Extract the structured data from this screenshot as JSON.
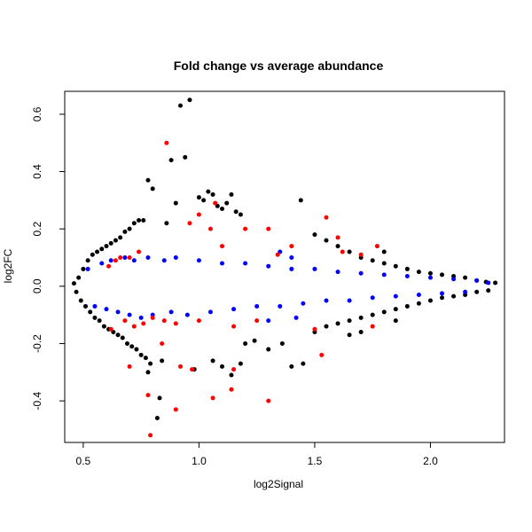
{
  "chart_data": {
    "type": "scatter",
    "title": "Fold change vs average abundance",
    "xlabel": "log2Signal",
    "ylabel": "log2FC",
    "xlim": [
      0.42,
      2.32
    ],
    "ylim": [
      -0.545,
      0.68
    ],
    "x_ticks": [
      0.5,
      1.0,
      1.5,
      2.0
    ],
    "x_tick_labels": [
      "0.5",
      "1.0",
      "1.5",
      "2.0"
    ],
    "y_ticks": [
      -0.4,
      -0.2,
      0.0,
      0.2,
      0.4,
      0.6
    ],
    "y_tick_labels": [
      "-0.4",
      "-0.2",
      "0.0",
      "0.2",
      "0.4",
      "0.6"
    ],
    "grid": false,
    "colors": {
      "black": "#000000",
      "blue": "#0000ff",
      "red": "#ff0000"
    },
    "series": [
      {
        "color": "#000000",
        "note_density": "dense cloud",
        "points": [
          [
            0.46,
            0.01
          ],
          [
            0.47,
            -0.02
          ],
          [
            0.48,
            0.03
          ],
          [
            0.49,
            -0.05
          ],
          [
            0.5,
            0.06
          ],
          [
            0.51,
            -0.07
          ],
          [
            0.52,
            0.09
          ],
          [
            0.53,
            -0.09
          ],
          [
            0.54,
            0.11
          ],
          [
            0.55,
            -0.11
          ],
          [
            0.56,
            0.12
          ],
          [
            0.57,
            -0.12
          ],
          [
            0.58,
            0.13
          ],
          [
            0.59,
            -0.14
          ],
          [
            0.6,
            0.14
          ],
          [
            0.61,
            -0.15
          ],
          [
            0.62,
            0.15
          ],
          [
            0.63,
            -0.16
          ],
          [
            0.64,
            0.16
          ],
          [
            0.65,
            -0.17
          ],
          [
            0.66,
            0.17
          ],
          [
            0.67,
            -0.18
          ],
          [
            0.68,
            0.19
          ],
          [
            0.69,
            -0.2
          ],
          [
            0.7,
            0.2
          ],
          [
            0.71,
            -0.21
          ],
          [
            0.72,
            0.22
          ],
          [
            0.73,
            -0.22
          ],
          [
            0.74,
            0.23
          ],
          [
            0.75,
            -0.24
          ],
          [
            0.76,
            0.23
          ],
          [
            0.77,
            -0.25
          ],
          [
            0.78,
            0.37
          ],
          [
            0.8,
            0.34
          ],
          [
            0.78,
            -0.3
          ],
          [
            0.79,
            -0.27
          ],
          [
            0.82,
            -0.46
          ],
          [
            0.83,
            -0.39
          ],
          [
            0.84,
            -0.26
          ],
          [
            0.86,
            0.22
          ],
          [
            0.88,
            0.44
          ],
          [
            0.9,
            0.29
          ],
          [
            0.92,
            0.63
          ],
          [
            0.94,
            0.45
          ],
          [
            0.96,
            0.65
          ],
          [
            0.98,
            -0.29
          ],
          [
            1.0,
            0.31
          ],
          [
            1.02,
            0.3
          ],
          [
            1.04,
            0.33
          ],
          [
            1.06,
            0.32
          ],
          [
            1.08,
            0.28
          ],
          [
            1.1,
            0.27
          ],
          [
            1.12,
            0.29
          ],
          [
            1.14,
            0.32
          ],
          [
            1.16,
            0.26
          ],
          [
            1.18,
            0.25
          ],
          [
            1.06,
            -0.26
          ],
          [
            1.1,
            -0.28
          ],
          [
            1.14,
            -0.31
          ],
          [
            1.18,
            -0.27
          ],
          [
            1.2,
            -0.2
          ],
          [
            1.24,
            -0.19
          ],
          [
            1.3,
            -0.22
          ],
          [
            1.36,
            -0.2
          ],
          [
            1.4,
            -0.28
          ],
          [
            1.45,
            -0.27
          ],
          [
            1.44,
            0.3
          ],
          [
            1.5,
            0.18
          ],
          [
            1.55,
            0.16
          ],
          [
            1.6,
            0.14
          ],
          [
            1.65,
            0.12
          ],
          [
            1.7,
            0.1
          ],
          [
            1.75,
            0.09
          ],
          [
            1.8,
            0.08
          ],
          [
            1.85,
            0.07
          ],
          [
            1.9,
            0.06
          ],
          [
            1.95,
            0.05
          ],
          [
            2.0,
            0.045
          ],
          [
            2.05,
            0.04
          ],
          [
            2.1,
            0.035
          ],
          [
            2.15,
            0.03
          ],
          [
            2.2,
            0.02
          ],
          [
            2.24,
            0.015
          ],
          [
            2.28,
            0.012
          ],
          [
            1.5,
            -0.16
          ],
          [
            1.55,
            -0.14
          ],
          [
            1.6,
            -0.13
          ],
          [
            1.65,
            -0.12
          ],
          [
            1.7,
            -0.11
          ],
          [
            1.75,
            -0.1
          ],
          [
            1.8,
            -0.09
          ],
          [
            1.85,
            -0.08
          ],
          [
            1.9,
            -0.07
          ],
          [
            1.95,
            -0.06
          ],
          [
            2.0,
            -0.05
          ],
          [
            2.05,
            -0.04
          ],
          [
            2.1,
            -0.035
          ],
          [
            2.15,
            -0.03
          ],
          [
            2.2,
            -0.02
          ],
          [
            2.25,
            -0.015
          ],
          [
            1.7,
            -0.16
          ],
          [
            1.65,
            -0.17
          ],
          [
            1.8,
            0.12
          ],
          [
            1.85,
            -0.12
          ]
        ]
      },
      {
        "color": "#0000ff",
        "points": [
          [
            0.52,
            0.06
          ],
          [
            0.55,
            -0.07
          ],
          [
            0.58,
            0.08
          ],
          [
            0.6,
            -0.08
          ],
          [
            0.62,
            0.09
          ],
          [
            0.65,
            -0.09
          ],
          [
            0.68,
            0.1
          ],
          [
            0.7,
            -0.1
          ],
          [
            0.72,
            0.09
          ],
          [
            0.75,
            -0.11
          ],
          [
            0.78,
            0.1
          ],
          [
            0.8,
            -0.1
          ],
          [
            0.85,
            0.09
          ],
          [
            0.88,
            -0.09
          ],
          [
            0.9,
            0.1
          ],
          [
            0.95,
            -0.1
          ],
          [
            1.0,
            0.09
          ],
          [
            1.05,
            -0.09
          ],
          [
            1.1,
            0.08
          ],
          [
            1.15,
            -0.08
          ],
          [
            1.2,
            0.08
          ],
          [
            1.25,
            -0.07
          ],
          [
            1.3,
            0.07
          ],
          [
            1.35,
            -0.07
          ],
          [
            1.4,
            0.06
          ],
          [
            1.45,
            -0.06
          ],
          [
            1.5,
            0.06
          ],
          [
            1.55,
            -0.05
          ],
          [
            1.6,
            0.05
          ],
          [
            1.65,
            -0.05
          ],
          [
            1.7,
            0.045
          ],
          [
            1.75,
            -0.04
          ],
          [
            1.8,
            0.04
          ],
          [
            1.85,
            -0.035
          ],
          [
            1.9,
            0.035
          ],
          [
            1.95,
            -0.03
          ],
          [
            2.0,
            0.03
          ],
          [
            2.05,
            -0.025
          ],
          [
            2.1,
            0.025
          ],
          [
            2.15,
            -0.02
          ],
          [
            2.2,
            0.02
          ],
          [
            2.25,
            0.012
          ],
          [
            1.4,
            0.1
          ],
          [
            1.42,
            -0.11
          ],
          [
            1.35,
            0.12
          ],
          [
            1.3,
            -0.12
          ]
        ]
      },
      {
        "color": "#ff0000",
        "points": [
          [
            0.61,
            0.07
          ],
          [
            0.64,
            0.09
          ],
          [
            0.66,
            0.1
          ],
          [
            0.7,
            0.1
          ],
          [
            0.74,
            0.12
          ],
          [
            0.68,
            -0.12
          ],
          [
            0.62,
            -0.15
          ],
          [
            0.72,
            -0.14
          ],
          [
            0.76,
            -0.13
          ],
          [
            0.8,
            -0.11
          ],
          [
            0.85,
            -0.12
          ],
          [
            0.9,
            -0.13
          ],
          [
            0.84,
            -0.2
          ],
          [
            0.86,
            0.5
          ],
          [
            0.7,
            -0.28
          ],
          [
            0.78,
            -0.38
          ],
          [
            0.79,
            -0.52
          ],
          [
            0.9,
            -0.43
          ],
          [
            0.92,
            -0.28
          ],
          [
            0.97,
            -0.29
          ],
          [
            1.0,
            0.25
          ],
          [
            1.07,
            0.29
          ],
          [
            1.06,
            -0.39
          ],
          [
            1.14,
            -0.36
          ],
          [
            1.15,
            -0.29
          ],
          [
            1.3,
            -0.4
          ],
          [
            1.2,
            0.2
          ],
          [
            1.1,
            0.14
          ],
          [
            1.15,
            -0.14
          ],
          [
            1.25,
            -0.12
          ],
          [
            1.3,
            0.2
          ],
          [
            1.4,
            0.14
          ],
          [
            1.55,
            0.24
          ],
          [
            1.53,
            -0.24
          ],
          [
            1.5,
            -0.15
          ],
          [
            1.6,
            0.17
          ],
          [
            1.62,
            0.12
          ],
          [
            1.75,
            -0.14
          ],
          [
            1.77,
            0.14
          ],
          [
            1.7,
            0.11
          ],
          [
            1.34,
            0.11
          ],
          [
            1.0,
            -0.12
          ],
          [
            1.05,
            0.2
          ],
          [
            0.96,
            0.22
          ]
        ]
      }
    ]
  }
}
